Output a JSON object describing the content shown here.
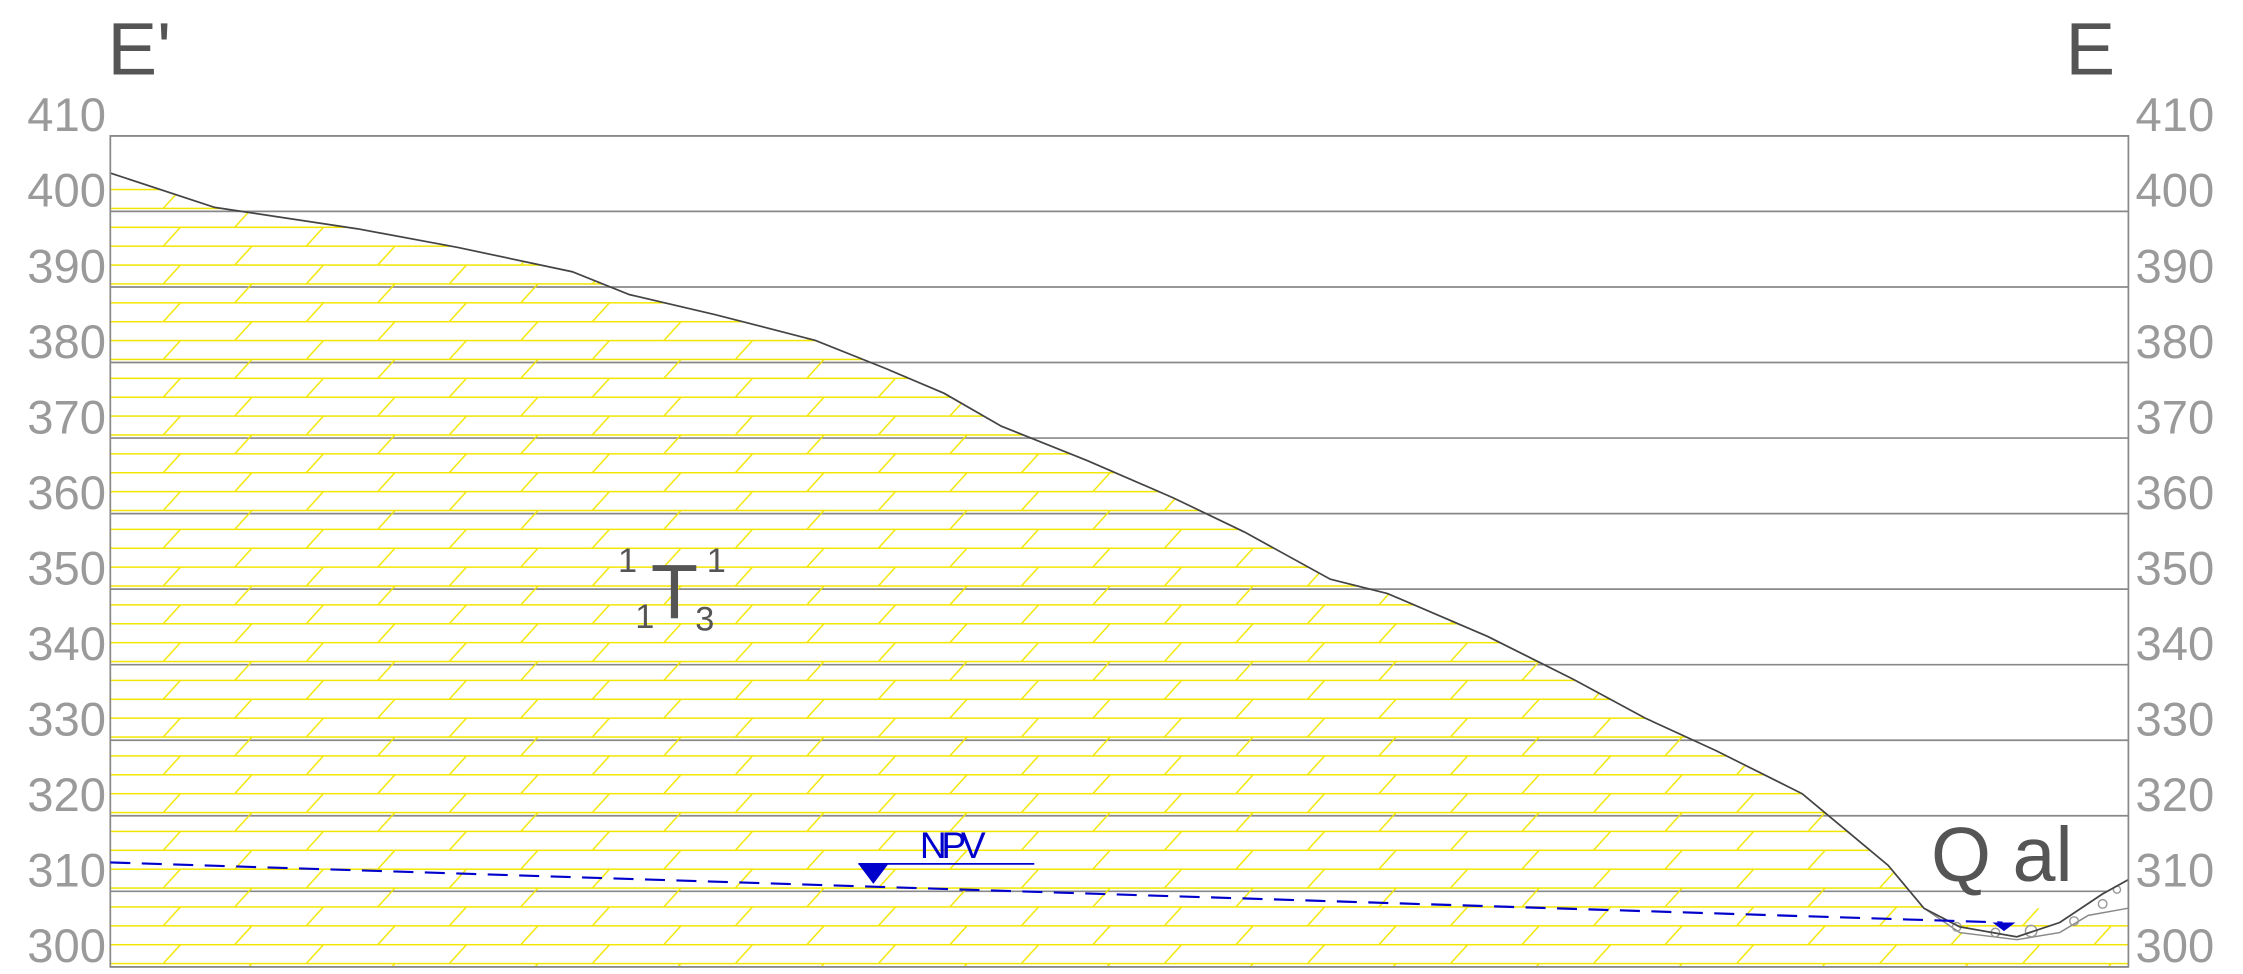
{
  "header": {
    "left": "E'",
    "right": "E"
  },
  "axis": {
    "ticks": [
      410,
      400,
      390,
      380,
      370,
      360,
      350,
      340,
      330,
      320,
      310,
      300
    ],
    "lim": [
      300,
      410
    ]
  },
  "formation": {
    "symbol": "T",
    "pre_super": "1",
    "pre_sub": "1",
    "post_super": "1",
    "post_sub": "3"
  },
  "deposit": {
    "label": "Q al"
  },
  "water_table": {
    "label": "NPV"
  }
}
